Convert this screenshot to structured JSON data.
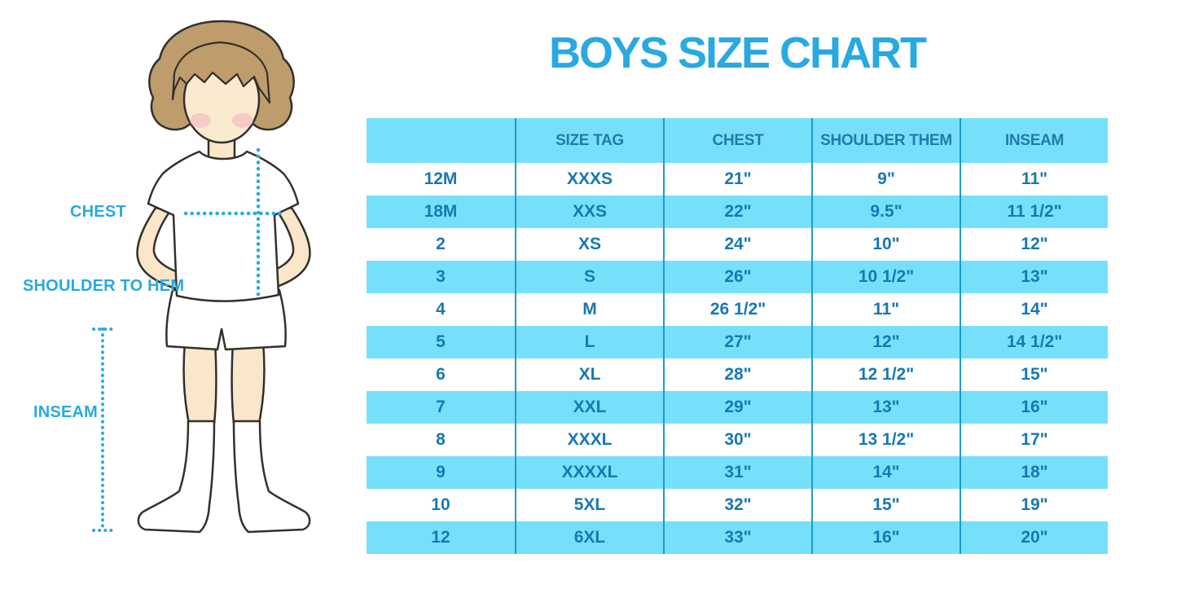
{
  "page": {
    "title": "BOYS SIZE CHART"
  },
  "diagram": {
    "chest_label": "CHEST",
    "shoulder_label": "SHOULDER TO HEM",
    "inseam_label": "INSEAM"
  },
  "chart_data": {
    "type": "table",
    "title": "BOYS SIZE CHART",
    "columns": [
      "",
      "SIZE TAG",
      "CHEST",
      "SHOULDER THEM",
      "INSEAM"
    ],
    "rows": [
      [
        "12M",
        "XXXS",
        "21\"",
        "9\"",
        "11\""
      ],
      [
        "18M",
        "XXS",
        "22\"",
        "9.5\"",
        "11 1/2\""
      ],
      [
        "2",
        "XS",
        "24\"",
        "10\"",
        "12\""
      ],
      [
        "3",
        "S",
        "26\"",
        "10 1/2\"",
        "13\""
      ],
      [
        "4",
        "M",
        "26 1/2\"",
        "11\"",
        "14\""
      ],
      [
        "5",
        "L",
        "27\"",
        "12\"",
        "14 1/2\""
      ],
      [
        "6",
        "XL",
        "28\"",
        "12 1/2\"",
        "15\""
      ],
      [
        "7",
        "XXL",
        "29\"",
        "13\"",
        "16\""
      ],
      [
        "8",
        "XXXL",
        "30\"",
        "13 1/2\"",
        "17\""
      ],
      [
        "9",
        "XXXXL",
        "31\"",
        "14\"",
        "18\""
      ],
      [
        "10",
        "5XL",
        "32\"",
        "15\"",
        "19\""
      ],
      [
        "12",
        "6XL",
        "33\"",
        "16\"",
        "20\""
      ]
    ],
    "layout": {
      "alternating_row_colors": true,
      "header_background": "#76E0FB"
    }
  },
  "colors": {
    "accent_blue": "#29A9E1",
    "row_blue": "#76E0FB",
    "divider_blue": "#1D9CC9",
    "cell_text_blue": "#1878B2",
    "skin": "#FAE7C9",
    "hair": "#BE9C6B"
  }
}
